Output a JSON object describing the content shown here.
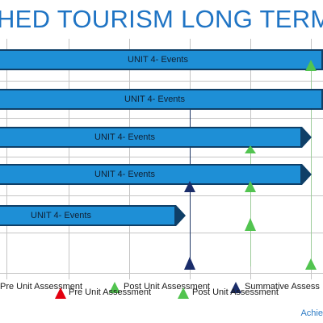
{
  "title": "HED TOURISM LONG TERM O",
  "bars": [
    {
      "label": "UNIT 4- Events"
    },
    {
      "label": "UNIT 4- Events"
    },
    {
      "label": "UNIT 4- Events"
    },
    {
      "label": "UNIT 4- Events"
    },
    {
      "label": "UNIT 4- Events"
    }
  ],
  "legend_back": [
    "Pre Unit Assessment",
    "Post Unit Assessment",
    "Summative Assess"
  ],
  "legend_front": [
    "Pre Unit Assessment",
    "Post Unit Assessment"
  ],
  "footer": "Achie",
  "colors": {
    "bar": "#1e8fd6",
    "pre": "#e3000f",
    "post": "#52c450",
    "summative": "#1a2d6a"
  }
}
